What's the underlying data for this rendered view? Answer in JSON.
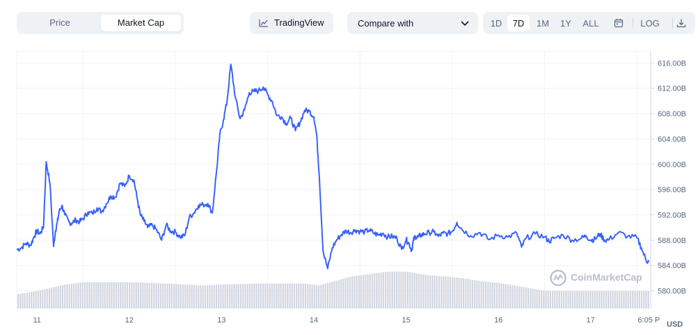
{
  "toolbar": {
    "tabs": [
      {
        "label": "Price"
      },
      {
        "label": "Market Cap"
      }
    ],
    "active_tab": "Market Cap",
    "tradingview_label": "TradingView",
    "compare_label": "Compare with",
    "ranges": [
      {
        "label": "1D"
      },
      {
        "label": "7D"
      },
      {
        "label": "1M"
      },
      {
        "label": "1Y"
      },
      {
        "label": "ALL"
      }
    ],
    "active_range": "7D",
    "log_label": "LOG",
    "icons": [
      "chart-line-icon",
      "chevron-down-icon",
      "calendar-icon",
      "download-icon"
    ]
  },
  "watermark": "CoinMarketCap",
  "currency_label": "USD",
  "colors": {
    "line": "#3861fb",
    "volume": "#d1d6df",
    "grid": "#eff2f5",
    "accent_bg": "#eff2f5"
  },
  "chart_data": {
    "type": "line",
    "yaxis_labels": [
      "616.00B",
      "612.00B",
      "608.00B",
      "604.00B",
      "600.00B",
      "596.00B",
      "592.00B",
      "588.00B",
      "584.00B",
      "580.00B"
    ],
    "y_ticks": [
      616,
      612,
      608,
      604,
      600,
      596,
      592,
      588,
      584,
      580
    ],
    "ylim": [
      577.2,
      617.8
    ],
    "xaxis_labels": [
      "11",
      "12",
      "13",
      "14",
      "15",
      "16",
      "17",
      "6:05 P"
    ],
    "x_ticks": [
      0.5,
      1.5,
      2.5,
      3.5,
      4.5,
      5.5,
      6.5,
      7.13
    ],
    "xlim": [
      0.28,
      7.15
    ],
    "grid": true,
    "series": [
      {
        "type": "line",
        "x": [
          0.28,
          0.33,
          0.38,
          0.43,
          0.47,
          0.5,
          0.53,
          0.57,
          0.6,
          0.64,
          0.68,
          0.7,
          0.72,
          0.74,
          0.77,
          0.8,
          0.85,
          0.88,
          0.92,
          0.96,
          1.0,
          1.05,
          1.1,
          1.15,
          1.2,
          1.25,
          1.3,
          1.35,
          1.4,
          1.45,
          1.5,
          1.55,
          1.58,
          1.62,
          1.66,
          1.7,
          1.75,
          1.8,
          1.85,
          1.9,
          1.95,
          2.0,
          2.05,
          2.1,
          2.15,
          2.2,
          2.25,
          2.3,
          2.35,
          2.4,
          2.45,
          2.48,
          2.52,
          2.56,
          2.6,
          2.65,
          2.7,
          2.75,
          2.8,
          2.85,
          2.9,
          2.95,
          3.0,
          3.05,
          3.1,
          3.15,
          3.2,
          3.25,
          3.3,
          3.35,
          3.4,
          3.45,
          3.5,
          3.53,
          3.56,
          3.6,
          3.65,
          3.7,
          3.75,
          3.8,
          3.85,
          3.9,
          3.95,
          4.0,
          4.05,
          4.1,
          4.15,
          4.2,
          4.25,
          4.3,
          4.35,
          4.4,
          4.45,
          4.5,
          4.53,
          4.56,
          4.58,
          4.6,
          4.63,
          4.66,
          4.7,
          4.75,
          4.8,
          4.85,
          4.9,
          4.95,
          5.0,
          5.05,
          5.1,
          5.2,
          5.3,
          5.4,
          5.5,
          5.6,
          5.7,
          5.75,
          5.8,
          5.9,
          6.0,
          6.05,
          6.1,
          6.2,
          6.3,
          6.4,
          6.45,
          6.5,
          6.55,
          6.6,
          6.65,
          6.7,
          6.8,
          6.9,
          7.0,
          7.05,
          7.1,
          7.13
        ],
        "y": [
          586.5,
          586.8,
          587.5,
          587.2,
          588.6,
          589.5,
          589.0,
          590.0,
          600.4,
          597.0,
          587.0,
          589.5,
          590.8,
          592.5,
          593.5,
          592.0,
          590.8,
          590.7,
          591.2,
          590.9,
          591.4,
          592.4,
          592.2,
          593.1,
          592.5,
          593.7,
          595.0,
          594.8,
          597.0,
          596.5,
          598.2,
          597.5,
          595.0,
          592.0,
          591.0,
          590.0,
          590.4,
          589.5,
          588.0,
          590.4,
          589.4,
          589.3,
          588.5,
          588.7,
          591.6,
          592.3,
          593.5,
          593.6,
          593.8,
          592.3,
          599.5,
          604.5,
          607.0,
          610.0,
          615.8,
          610.5,
          607.2,
          608.6,
          611.3,
          611.5,
          611.6,
          612.2,
          611.0,
          609.9,
          607.7,
          607.5,
          606.4,
          607.3,
          605.3,
          606.6,
          608.5,
          608.4,
          607.5,
          604.7,
          598.0,
          586.2,
          583.5,
          586.8,
          588.1,
          588.9,
          589.5,
          589.2,
          589.6,
          589.4,
          589.3,
          589.6,
          589.1,
          588.8,
          589.1,
          588.5,
          588.6,
          588.3,
          586.6,
          588.1,
          587.5,
          586.4,
          588.0,
          588.6,
          588.5,
          588.8,
          589.0,
          589.2,
          589.3,
          588.6,
          589.1,
          589.0,
          589.4,
          590.8,
          589.8,
          588.7,
          589.2,
          588.1,
          588.8,
          588.5,
          589.1,
          586.9,
          588.3,
          589.0,
          588.5,
          587.8,
          588.3,
          588.8,
          588.0,
          588.3,
          588.7,
          588.0,
          588.2,
          589.0,
          588.0,
          588.1,
          589.2,
          588.6,
          588.4,
          586.8,
          584.8,
          584.6
        ],
        "color": "#3861fb"
      },
      {
        "type": "bar",
        "note": "volume",
        "x": [
          0.28,
          0.5,
          0.8,
          1.0,
          1.5,
          1.9,
          2.3,
          2.5,
          2.9,
          3.4,
          3.55,
          3.9,
          4.3,
          4.5,
          4.7,
          5.1,
          5.3,
          5.5,
          5.7,
          6.0,
          6.5,
          7.0,
          7.13
        ],
        "y": [
          0.45,
          0.55,
          0.75,
          0.82,
          0.82,
          0.78,
          0.72,
          0.75,
          0.78,
          0.78,
          0.72,
          1.0,
          1.15,
          1.15,
          1.05,
          0.95,
          0.85,
          0.8,
          0.7,
          0.55,
          0.55,
          0.55,
          0.55
        ]
      }
    ]
  }
}
